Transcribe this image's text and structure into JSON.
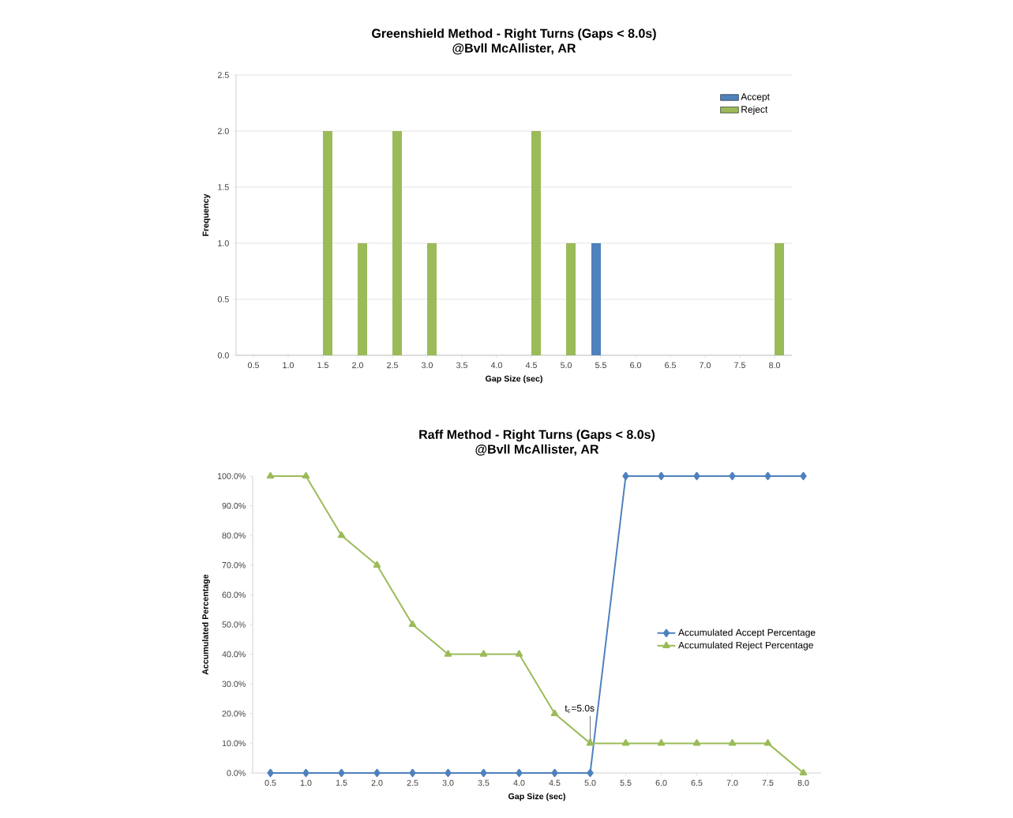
{
  "chart_data": [
    {
      "type": "bar",
      "title": "Greenshield Method - Right Turns (Gaps < 8.0s)",
      "subtitle": "@Bvll McAllister, AR",
      "xlabel": "Gap Size (sec)",
      "ylabel": "Frequency",
      "categories": [
        "0.5",
        "1.0",
        "1.5",
        "2.0",
        "2.5",
        "3.0",
        "3.5",
        "4.0",
        "4.5",
        "5.0",
        "5.5",
        "6.0",
        "6.5",
        "7.0",
        "7.5",
        "8.0"
      ],
      "series": [
        {
          "name": "Accept",
          "color": "#4f81bd",
          "values": [
            0,
            0,
            0,
            0,
            0,
            0,
            0,
            0,
            0,
            0,
            1,
            0,
            0,
            0,
            0,
            0
          ]
        },
        {
          "name": "Reject",
          "color": "#9bbb59",
          "values": [
            0,
            0,
            2,
            1,
            2,
            1,
            0,
            0,
            2,
            1,
            0,
            0,
            0,
            0,
            0,
            1
          ]
        }
      ],
      "ylim": [
        0,
        2.5
      ],
      "yticks": [
        {
          "value": 0,
          "label": "0.0"
        },
        0.5,
        {
          "value": 1,
          "label": "1.0"
        },
        1.5,
        {
          "value": 2,
          "label": "2.0"
        },
        2.5
      ],
      "grid": "y",
      "legend": "top right"
    },
    {
      "type": "line",
      "title": "Raff Method - Right Turns (Gaps < 8.0s)",
      "subtitle": "@Bvll McAllister, AR",
      "xlabel": "Gap Size (sec)",
      "ylabel": "Accumulated Percentage",
      "categories": [
        "0.5",
        "1.0",
        "1.5",
        "2.0",
        "2.5",
        "3.0",
        "3.5",
        "4.0",
        "4.5",
        "5.0",
        "5.5",
        "6.0",
        "6.5",
        "7.0",
        "7.5",
        "8.0"
      ],
      "series": [
        {
          "name": "Accumulated Accept Percentage",
          "color": "#4f81bd",
          "marker": "diamond",
          "values": [
            0,
            0,
            0,
            0,
            0,
            0,
            0,
            0,
            0,
            0,
            100,
            100,
            100,
            100,
            100,
            100
          ]
        },
        {
          "name": "Accumulated Reject Percentage",
          "color": "#9bbb59",
          "marker": "triangle",
          "values": [
            100,
            100,
            80,
            70,
            50,
            40,
            40,
            40,
            20,
            10,
            10,
            10,
            10,
            10,
            10,
            0
          ]
        }
      ],
      "ylim": [
        0,
        100
      ],
      "yticks": [
        {
          "value": 0,
          "label": "0.0%"
        },
        {
          "value": 10,
          "label": "10.0%"
        },
        {
          "value": 20,
          "label": "20.0%"
        },
        {
          "value": 30,
          "label": "30.0%"
        },
        {
          "value": 40,
          "label": "40.0%"
        },
        {
          "value": 50,
          "label": "50.0%"
        },
        {
          "value": 60,
          "label": "60.0%"
        },
        {
          "value": 70,
          "label": "70.0%"
        },
        {
          "value": 80,
          "label": "80.0%"
        },
        {
          "value": 90,
          "label": "90.0%"
        },
        {
          "value": 100,
          "label": "100.0%"
        }
      ],
      "annotations": [
        {
          "text": "t$_{c}$=5.0s",
          "x": "5.0",
          "y": 10
        }
      ],
      "legend": "right"
    }
  ]
}
